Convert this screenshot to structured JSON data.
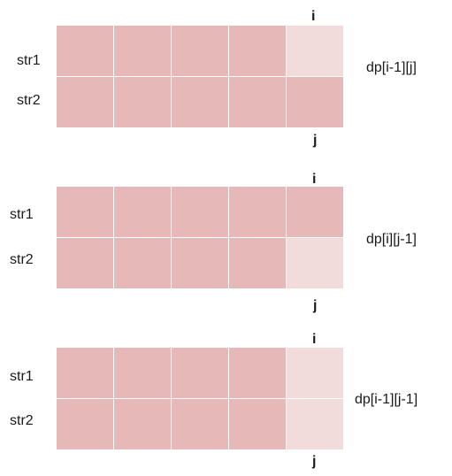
{
  "colors": {
    "filled": "#e6b8b8",
    "empty": "#f2dcdb",
    "gridline": "#ffffff"
  },
  "panels": [
    {
      "row_labels": [
        "str1",
        "str2"
      ],
      "index_top": "i",
      "index_bottom": "j",
      "formula": "dp[i-1][j]",
      "cells": [
        [
          "filled",
          "filled",
          "filled",
          "filled",
          "empty"
        ],
        [
          "filled",
          "filled",
          "filled",
          "filled",
          "filled"
        ]
      ]
    },
    {
      "row_labels": [
        "str1",
        "str2"
      ],
      "index_top": "i",
      "index_bottom": "j",
      "formula": "dp[i][j-1]",
      "cells": [
        [
          "filled",
          "filled",
          "filled",
          "filled",
          "filled"
        ],
        [
          "filled",
          "filled",
          "filled",
          "filled",
          "empty"
        ]
      ]
    },
    {
      "row_labels": [
        "str1",
        "str2"
      ],
      "index_top": "i",
      "index_bottom": "j",
      "formula": "dp[i-1][j-1]",
      "cells": [
        [
          "filled",
          "filled",
          "filled",
          "filled",
          "empty"
        ],
        [
          "filled",
          "filled",
          "filled",
          "filled",
          "empty"
        ]
      ]
    }
  ]
}
